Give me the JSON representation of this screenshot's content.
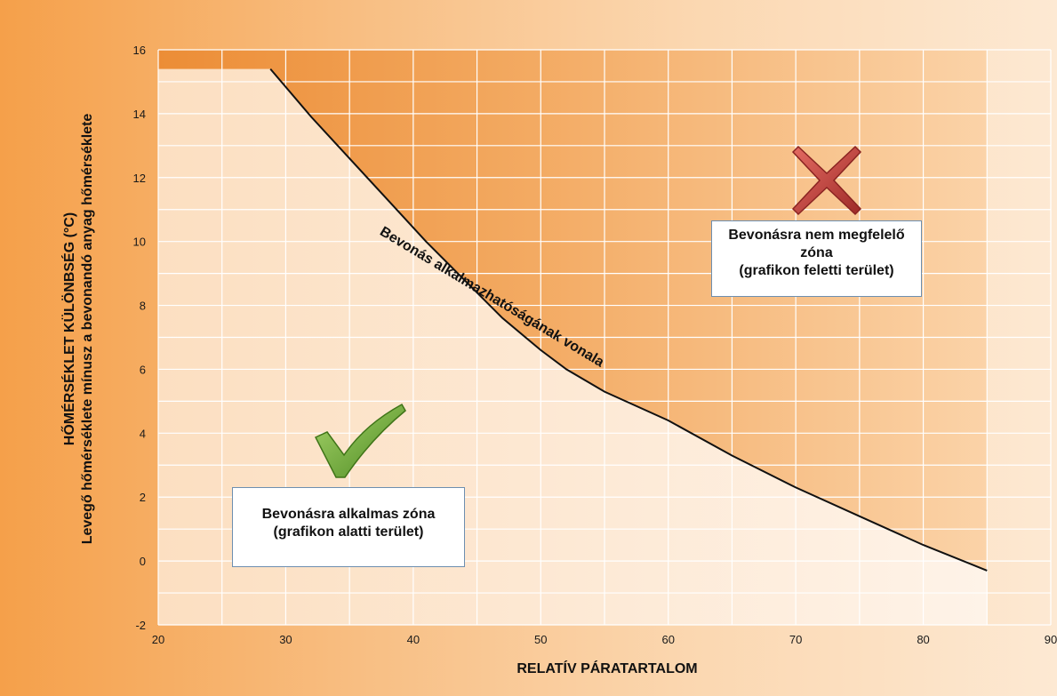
{
  "chart_data": {
    "type": "line",
    "xlabel": "RELATÍV PÁRATARTALOM",
    "ylabel_line1": "HŐMÉRSÉKLET KÜLÖNBSÉG (°C)",
    "ylabel_line2": "Levegő hőmérséklete mínusz a bevonandó anyag hőmérséklete",
    "xlim": [
      20,
      90
    ],
    "ylim": [
      -2,
      16
    ],
    "x_ticks": [
      "20",
      "30",
      "40",
      "50",
      "60",
      "70",
      "80",
      "90"
    ],
    "y_ticks": [
      "-2",
      "0",
      "2",
      "4",
      "6",
      "8",
      "10",
      "12",
      "14",
      "16"
    ],
    "grid": true,
    "series": [
      {
        "name": "Bevonás alkalmazhatóságának vonala",
        "x": [
          28.8,
          32,
          35,
          38,
          41,
          44,
          47,
          50,
          52,
          55,
          60,
          65,
          70,
          75,
          80,
          85
        ],
        "y": [
          15.4,
          13.9,
          12.6,
          11.3,
          10.0,
          8.8,
          7.6,
          6.6,
          6.0,
          5.3,
          4.4,
          3.3,
          2.3,
          1.4,
          0.5,
          -0.3
        ]
      }
    ],
    "plateau_y": 15.4,
    "annotations": {
      "curve_label": "Bevonás alkalmazhatóságának vonala",
      "bad_zone": [
        "Bevonásra nem megfelelő",
        "zóna",
        "(grafikon feletti terület)"
      ],
      "good_zone": [
        "Bevonásra alkalmas zóna",
        "(grafikon alatti terület)"
      ]
    }
  },
  "colors": {
    "curve": "#111111",
    "grid": "#ffffff",
    "bad_zone_fill": "#ee9a48",
    "good_zone_fill": "#fdeede",
    "cross": "#c8433f",
    "check": "#6aa02f"
  },
  "icons": {
    "bad": "cross-icon",
    "good": "check-icon"
  }
}
